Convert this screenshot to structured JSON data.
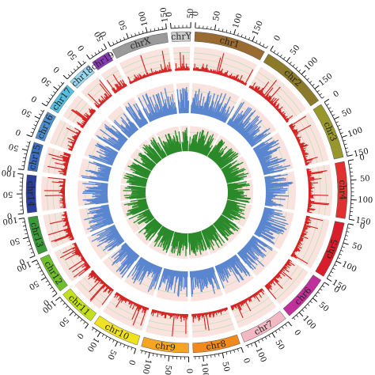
{
  "chart_data": {
    "type": "circos",
    "chromosomes": [
      {
        "name": "chr1",
        "length": 190,
        "color": "#9a6b30"
      },
      {
        "name": "chr2",
        "length": 180,
        "color": "#8a7a2a"
      },
      {
        "name": "chr3",
        "length": 150,
        "color": "#97972c"
      },
      {
        "name": "chr4",
        "length": 150,
        "color": "#e03030"
      },
      {
        "name": "chr5",
        "length": 150,
        "color": "#d81e2a"
      },
      {
        "name": "chr6",
        "length": 125,
        "color": "#c0309a"
      },
      {
        "name": "chr7",
        "length": 125,
        "color": "#f2b8c4"
      },
      {
        "name": "chr8",
        "length": 125,
        "color": "#f08a1e"
      },
      {
        "name": "chr9",
        "length": 125,
        "color": "#f5a51f"
      },
      {
        "name": "chr10",
        "length": 125,
        "color": "#f0e21c"
      },
      {
        "name": "chr11",
        "length": 100,
        "color": "#c4df1c"
      },
      {
        "name": "chr12",
        "length": 100,
        "color": "#6fbf2a"
      },
      {
        "name": "chr13",
        "length": 100,
        "color": "#3a9a3a"
      },
      {
        "name": "chr14",
        "length": 100,
        "color": "#2b3e9a"
      },
      {
        "name": "chr15",
        "length": 75,
        "color": "#3b6fc0"
      },
      {
        "name": "chr16",
        "length": 75,
        "color": "#4f8fd0"
      },
      {
        "name": "chr17",
        "length": 75,
        "color": "#56bfe0"
      },
      {
        "name": "chr18",
        "length": 65,
        "color": "#9ad6ee"
      },
      {
        "name": "chr19",
        "length": 50,
        "color": "#8a3ab5"
      },
      {
        "name": "chrX",
        "length": 150,
        "color": "#9a9a9a"
      },
      {
        "name": "chrY",
        "length": 50,
        "color": "#cfcfcf"
      }
    ],
    "tick_labels": [
      "0",
      "50",
      "100",
      "150"
    ],
    "tick_step": 50,
    "tracks": [
      {
        "color": "#d42020",
        "background": "#f7d0c8",
        "gridline_color": "#b8e0b0"
      },
      {
        "color": "#5a86cf",
        "background": "#f7d0c8",
        "gridline_color": "#b8e0b0"
      },
      {
        "color": "#2a8a2a",
        "background": "#f7d0c8",
        "gridline_color": "#b8e0b0"
      }
    ]
  }
}
